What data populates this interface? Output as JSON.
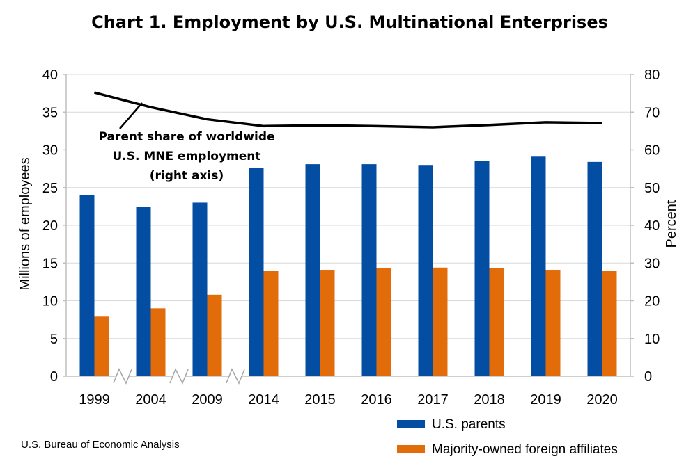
{
  "chart_data": {
    "type": "bar",
    "title": "Chart 1. Employment by U.S. Multinational Enterprises",
    "categories": [
      "1999",
      "2004",
      "2009",
      "2014",
      "2015",
      "2016",
      "2017",
      "2018",
      "2019",
      "2020"
    ],
    "series": [
      {
        "name": "U.S. parents",
        "values": [
          24.0,
          22.4,
          23.0,
          27.6,
          28.1,
          28.1,
          28.0,
          28.5,
          29.1,
          28.4
        ],
        "color": "#034ea2",
        "axis": "left"
      },
      {
        "name": "Majority-owned foreign affiliates",
        "values": [
          7.9,
          9.0,
          10.8,
          14.0,
          14.1,
          14.3,
          14.4,
          14.3,
          14.1,
          14.0
        ],
        "color": "#e36c0a",
        "axis": "left"
      },
      {
        "name": "Parent share of worldwide U.S. MNE employment (right axis)",
        "type": "line",
        "values": [
          75.2,
          71.3,
          68.1,
          66.3,
          66.5,
          66.3,
          66.0,
          66.6,
          67.3,
          67.1
        ],
        "color": "#000000",
        "axis": "right"
      }
    ],
    "ylabel": "Millions of employees",
    "y2label": "Percent",
    "ylim": [
      0,
      40
    ],
    "y2lim": [
      0,
      80
    ],
    "yticks": [
      "0",
      "5",
      "10",
      "15",
      "20",
      "25",
      "30",
      "35",
      "40"
    ],
    "y2ticks": [
      "0",
      "10",
      "20",
      "30",
      "40",
      "50",
      "60",
      "70",
      "80"
    ],
    "grid": true,
    "axis_breaks": "between 1999-2004, 2004-2009, 2009-2014",
    "annotation": [
      "Parent share of worldwide",
      "U.S. MNE employment",
      "(right axis)"
    ],
    "legend_position": "bottom-right",
    "source": "U.S. Bureau of Economic Analysis"
  }
}
